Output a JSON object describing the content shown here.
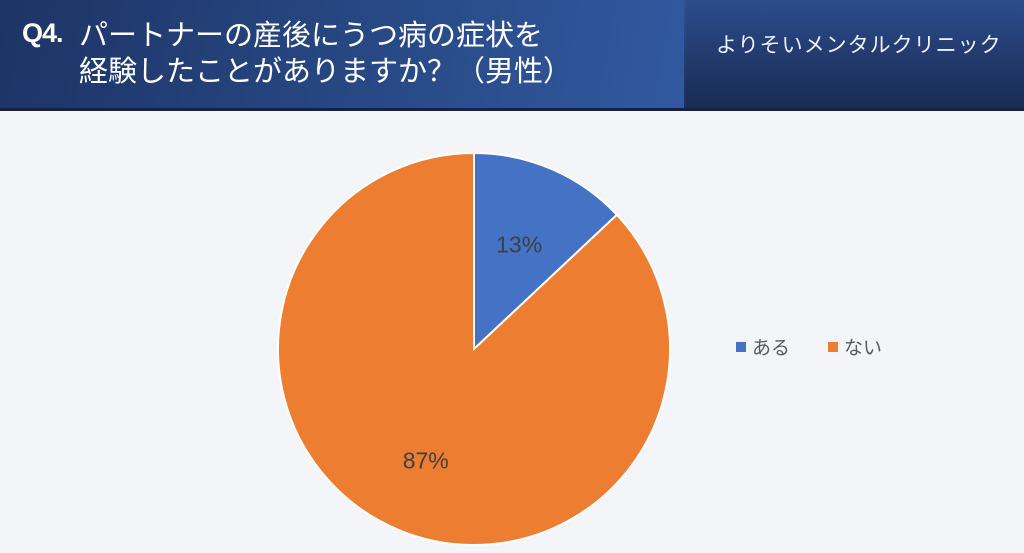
{
  "header": {
    "question_number": "Q4.",
    "title_line1": "パートナーの産後にうつ病の症状を",
    "title_line2": "経験したことがありますか？（男性）",
    "clinic_name": "よりそいメンタルクリニック"
  },
  "colors": {
    "yes": "#4472c4",
    "no": "#ed7d31",
    "background": "#f3f5f9",
    "header_dark": "#1c2e56"
  },
  "legend": {
    "items": [
      {
        "label": "ある",
        "color": "#4472c4"
      },
      {
        "label": "ない",
        "color": "#ed7d31"
      }
    ]
  },
  "labels": {
    "yes_pct": "13%",
    "no_pct": "87%"
  },
  "chart_data": {
    "type": "pie",
    "title": "Q4. パートナーの産後にうつ病の症状を経験したことがありますか？（男性）",
    "categories": [
      "ある",
      "ない"
    ],
    "values": [
      13,
      87
    ],
    "unit": "%",
    "colors": [
      "#4472c4",
      "#ed7d31"
    ],
    "start_angle": "12 o'clock, clockwise",
    "legend_position": "right"
  }
}
